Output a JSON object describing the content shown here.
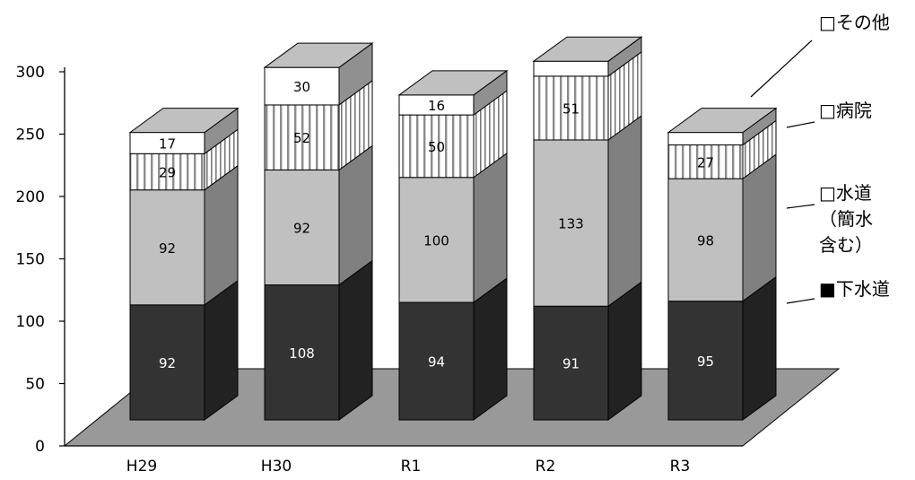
{
  "chart_data": {
    "type": "bar",
    "stacked": true,
    "style_3d": true,
    "categories": [
      "H29",
      "H30",
      "R1",
      "R2",
      "R3"
    ],
    "ylim": [
      0,
      300
    ],
    "yticks": [
      "0",
      "50",
      "100",
      "150",
      "200",
      "250",
      "300"
    ],
    "series": [
      {
        "key": "sewer",
        "name": "下水道",
        "values": [
          92,
          108,
          94,
          91,
          95
        ],
        "front": "#333333",
        "side": "#222222",
        "top": "#555555",
        "label_color": "#ffffff"
      },
      {
        "key": "water",
        "name": "水道（簡水含む）",
        "values": [
          92,
          92,
          100,
          133,
          98
        ],
        "front": "#c0c0c0",
        "side": "#808080",
        "top": "#d8d8d8",
        "label_color": "#000000"
      },
      {
        "key": "hospital",
        "name": "病院",
        "values": [
          29,
          52,
          50,
          51,
          27
        ],
        "front": "#ffffff",
        "side": "#ffffff",
        "top": "#c0c0c0",
        "stripe": "#808080",
        "label_color": "#000000"
      },
      {
        "key": "other",
        "name": "その他",
        "values": [
          17,
          30,
          16,
          12,
          10
        ],
        "front": "#ffffff",
        "side": "#909090",
        "top": "#c0c0c0",
        "label_color": "#000000"
      }
    ],
    "legend": {
      "placement": "right",
      "items": [
        {
          "key": "other",
          "lines": [
            "□その他"
          ]
        },
        {
          "key": "hospital",
          "lines": [
            "□病院"
          ]
        },
        {
          "key": "water",
          "lines": [
            "□水道",
            "（簡水",
            "含む）"
          ]
        },
        {
          "key": "sewer",
          "lines": [
            "■下水道"
          ]
        }
      ]
    },
    "floor_color": "#999999",
    "grid": false
  }
}
